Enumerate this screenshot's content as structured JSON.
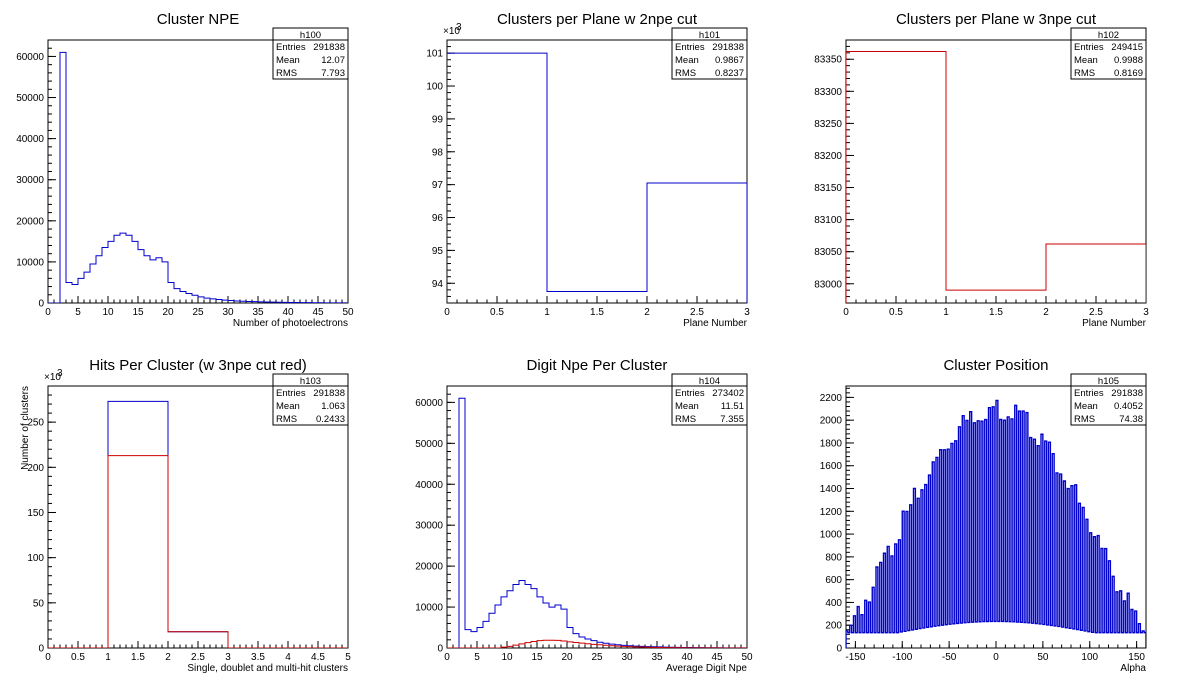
{
  "chart_data": [
    {
      "id": "h100",
      "type": "histogram",
      "title": "Cluster NPE",
      "xlabel": "Number of photoelectrons",
      "ylabel": "",
      "xlim": [
        0,
        50
      ],
      "ylim": [
        0,
        64000
      ],
      "y_exponent": "",
      "xticks": [
        0,
        5,
        10,
        15,
        20,
        25,
        30,
        35,
        40,
        45,
        50
      ],
      "yticks": [
        0,
        10000,
        20000,
        30000,
        40000,
        50000,
        60000
      ],
      "bin_edges": [
        0,
        1,
        2,
        3,
        4,
        5,
        6,
        7,
        8,
        9,
        10,
        11,
        12,
        13,
        14,
        15,
        16,
        17,
        18,
        19,
        20,
        21,
        22,
        23,
        24,
        25,
        26,
        27,
        28,
        29,
        30,
        31,
        32,
        33,
        34,
        35,
        36,
        37,
        38,
        39,
        40,
        41,
        42,
        43,
        44,
        45,
        46,
        47,
        48,
        49,
        50
      ],
      "series": [
        {
          "color": "#0000cc",
          "values": [
            0,
            0,
            61000,
            5000,
            4500,
            6000,
            7500,
            9500,
            11500,
            13500,
            15000,
            16500,
            17000,
            16500,
            15000,
            13000,
            11500,
            10500,
            11000,
            10000,
            5000,
            3500,
            2800,
            2300,
            1900,
            1500,
            1200,
            1000,
            850,
            700,
            600,
            500,
            430,
            380,
            330,
            280,
            240,
            210,
            180,
            150,
            130,
            110,
            95,
            80,
            65,
            55,
            45,
            35,
            30,
            25
          ]
        }
      ],
      "stats": {
        "name": "h100",
        "rows": [
          [
            "Entries",
            "291838"
          ],
          [
            "Mean",
            "12.07"
          ],
          [
            "RMS",
            "7.793"
          ]
        ]
      }
    },
    {
      "id": "h101",
      "type": "histogram",
      "title": "Clusters per Plane w 2npe cut",
      "xlabel": "Plane Number",
      "ylabel": "",
      "xlim": [
        0,
        3
      ],
      "ylim": [
        93.4,
        101.4
      ],
      "y_exponent": "×10",
      "y_exponent_power": "3",
      "xticks": [
        0,
        0.5,
        1,
        1.5,
        2,
        2.5,
        3
      ],
      "yticks": [
        94,
        95,
        96,
        97,
        98,
        99,
        100,
        101
      ],
      "bin_edges": [
        0,
        1,
        2,
        3
      ],
      "series": [
        {
          "color": "#0000cc",
          "values": [
            101.0,
            93.75,
            97.05
          ]
        }
      ],
      "stats": {
        "name": "h101",
        "rows": [
          [
            "Entries",
            "291838"
          ],
          [
            "Mean",
            "0.9867"
          ],
          [
            "RMS",
            "0.8237"
          ]
        ]
      }
    },
    {
      "id": "h102",
      "type": "histogram",
      "title": "Clusters per Plane w 3npe cut",
      "xlabel": "Plane Number",
      "ylabel": "",
      "xlim": [
        0,
        3
      ],
      "ylim": [
        82970,
        83380
      ],
      "y_exponent": "",
      "xticks": [
        0,
        0.5,
        1,
        1.5,
        2,
        2.5,
        3
      ],
      "yticks": [
        83000,
        83050,
        83100,
        83150,
        83200,
        83250,
        83300,
        83350
      ],
      "bin_edges": [
        0,
        1,
        2,
        3
      ],
      "series": [
        {
          "color": "#cc0000",
          "values": [
            83362,
            82990,
            83062
          ]
        }
      ],
      "stats": {
        "name": "h102",
        "rows": [
          [
            "Entries",
            "249415"
          ],
          [
            "Mean",
            "0.9988"
          ],
          [
            "RMS",
            "0.8169"
          ]
        ]
      }
    },
    {
      "id": "h103",
      "type": "histogram",
      "title": "Hits Per Cluster (w 3npe cut red)",
      "xlabel": "Single, doublet and multi-hit clusters",
      "ylabel": "Number of clusters",
      "xlim": [
        0,
        5
      ],
      "ylim": [
        0,
        290
      ],
      "y_exponent": "×10",
      "y_exponent_power": "3",
      "xticks": [
        0,
        0.5,
        1,
        1.5,
        2,
        2.5,
        3,
        3.5,
        4,
        4.5,
        5
      ],
      "yticks": [
        0,
        50,
        100,
        150,
        200,
        250
      ],
      "bin_edges": [
        0,
        1,
        2,
        3,
        4,
        5
      ],
      "series": [
        {
          "color": "#0000cc",
          "values": [
            0,
            273,
            18,
            0,
            0
          ]
        },
        {
          "color": "#cc0000",
          "values": [
            0,
            213,
            18,
            0,
            0
          ]
        }
      ],
      "stats": {
        "name": "h103",
        "rows": [
          [
            "Entries",
            "291838"
          ],
          [
            "Mean",
            "1.063"
          ],
          [
            "RMS",
            "0.2433"
          ]
        ]
      }
    },
    {
      "id": "h104",
      "type": "histogram",
      "title": "Digit Npe Per Cluster",
      "xlabel": "Average Digit Npe",
      "ylabel": "",
      "xlim": [
        0,
        50
      ],
      "ylim": [
        0,
        64000
      ],
      "y_exponent": "",
      "xticks": [
        0,
        5,
        10,
        15,
        20,
        25,
        30,
        35,
        40,
        45,
        50
      ],
      "yticks": [
        0,
        10000,
        20000,
        30000,
        40000,
        50000,
        60000
      ],
      "bin_edges": [
        0,
        1,
        2,
        3,
        4,
        5,
        6,
        7,
        8,
        9,
        10,
        11,
        12,
        13,
        14,
        15,
        16,
        17,
        18,
        19,
        20,
        21,
        22,
        23,
        24,
        25,
        26,
        27,
        28,
        29,
        30,
        31,
        32,
        33,
        34,
        35,
        36,
        37,
        38,
        39,
        40,
        41,
        42,
        43,
        44,
        45,
        46,
        47,
        48,
        49,
        50
      ],
      "series": [
        {
          "color": "#0000cc",
          "values": [
            0,
            0,
            61000,
            4500,
            4000,
            5000,
            6500,
            8500,
            10500,
            12500,
            14000,
            15500,
            16500,
            15500,
            14500,
            12500,
            11000,
            10000,
            10500,
            9500,
            5000,
            3500,
            2700,
            2200,
            1800,
            1400,
            1150,
            950,
            800,
            650,
            550,
            470,
            400,
            350,
            300,
            260,
            220,
            190,
            160,
            135,
            115,
            95,
            80,
            68,
            56,
            46,
            38,
            30,
            25,
            20
          ]
        },
        {
          "color": "#cc0000",
          "values": [
            0,
            0,
            0,
            0,
            0,
            0,
            0,
            0,
            0,
            200,
            400,
            700,
            1000,
            1300,
            1600,
            1800,
            1900,
            1900,
            1850,
            1700,
            1500,
            1350,
            1200,
            1050,
            900,
            780,
            660,
            560,
            470,
            400,
            330,
            280,
            230,
            190,
            160,
            130,
            105,
            85,
            70,
            56,
            45,
            36,
            28,
            22,
            17,
            13,
            10,
            7,
            5,
            4
          ]
        }
      ],
      "stats": {
        "name": "h104",
        "rows": [
          [
            "Entries",
            "273402"
          ],
          [
            "Mean",
            "11.51"
          ],
          [
            "RMS",
            "7.355"
          ]
        ]
      }
    },
    {
      "id": "h105",
      "type": "histogram",
      "title": "Cluster Position",
      "xlabel": "Alpha",
      "ylabel": "",
      "xlim": [
        -160,
        160
      ],
      "ylim": [
        0,
        2300
      ],
      "y_exponent": "",
      "xticks": [
        -150,
        -100,
        -50,
        0,
        50,
        100,
        150
      ],
      "yticks": [
        0,
        200,
        400,
        600,
        800,
        1000,
        1200,
        1400,
        1600,
        1800,
        2000,
        2200
      ],
      "generator": {
        "nbins": 160,
        "peak": 2150,
        "floor": 150,
        "alt_ratio": 0.09
      },
      "series": [
        {
          "color": "#0000cc"
        }
      ],
      "stats": {
        "name": "h105",
        "rows": [
          [
            "Entries",
            "291838"
          ],
          [
            "Mean",
            "0.4052"
          ],
          [
            "RMS",
            "74.38"
          ]
        ]
      }
    }
  ]
}
